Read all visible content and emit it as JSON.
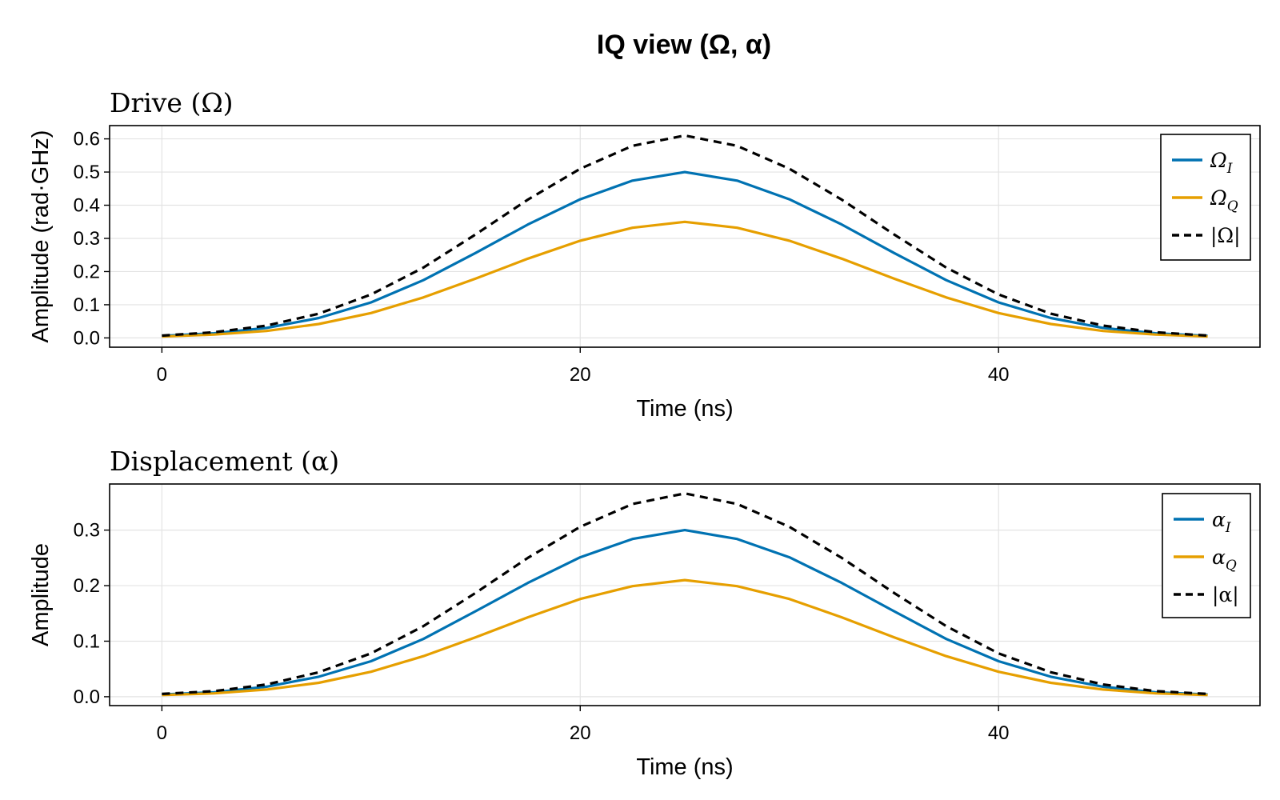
{
  "figure": {
    "title": "IQ view (Ω, α)"
  },
  "colors": {
    "I": "#0072b2",
    "Q": "#e69f00",
    "abs": "#000000",
    "grid": "#e3e3e3",
    "frame": "#000000"
  },
  "chart_data": [
    {
      "type": "line",
      "title": "Drive (Ω)",
      "xlabel": "Time (ns)",
      "ylabel": "Amplitude (rad·GHz)",
      "xlim": [
        -2.5,
        52.5
      ],
      "ylim": [
        -0.028,
        0.64
      ],
      "xticks": [
        0,
        20,
        40
      ],
      "yticks": [
        0.0,
        0.1,
        0.2,
        0.3,
        0.4,
        0.5,
        0.6
      ],
      "ytick_labels": [
        "0.0",
        "0.1",
        "0.2",
        "0.3",
        "0.4",
        "0.5",
        "0.6"
      ],
      "grid": true,
      "legend_position": "top-right",
      "x": [
        0,
        2.5,
        5,
        7.5,
        10,
        12.5,
        15,
        17.5,
        20,
        22.5,
        25,
        27.5,
        30,
        32.5,
        35,
        37.5,
        40,
        42.5,
        45,
        47.5,
        50
      ],
      "series": [
        {
          "name": "Ω_I",
          "label_main": "Ω",
          "label_sub": "I",
          "color_key": "I",
          "dash": false,
          "values": [
            0.006,
            0.014,
            0.03,
            0.06,
            0.107,
            0.174,
            0.256,
            0.342,
            0.418,
            0.474,
            0.5,
            0.474,
            0.418,
            0.342,
            0.256,
            0.174,
            0.107,
            0.06,
            0.03,
            0.014,
            0.006
          ]
        },
        {
          "name": "Ω_Q",
          "label_main": "Ω",
          "label_sub": "Q",
          "color_key": "Q",
          "dash": false,
          "values": [
            0.004,
            0.01,
            0.021,
            0.042,
            0.075,
            0.122,
            0.179,
            0.239,
            0.293,
            0.332,
            0.35,
            0.332,
            0.293,
            0.239,
            0.179,
            0.122,
            0.075,
            0.042,
            0.021,
            0.01,
            0.004
          ]
        },
        {
          "name": "|Ω|",
          "label_main": "|Ω|",
          "label_sub": "",
          "color_key": "abs",
          "dash": true,
          "values": [
            0.007,
            0.017,
            0.037,
            0.073,
            0.131,
            0.212,
            0.312,
            0.417,
            0.51,
            0.579,
            0.61,
            0.579,
            0.51,
            0.417,
            0.312,
            0.212,
            0.131,
            0.073,
            0.037,
            0.017,
            0.007
          ]
        }
      ]
    },
    {
      "type": "line",
      "title": "Displacement (α)",
      "xlabel": "Time (ns)",
      "ylabel": "Amplitude",
      "xlim": [
        -2.5,
        52.5
      ],
      "ylim": [
        -0.016,
        0.383
      ],
      "xticks": [
        0,
        20,
        40
      ],
      "yticks": [
        0.0,
        0.1,
        0.2,
        0.3
      ],
      "ytick_labels": [
        "0.0",
        "0.1",
        "0.2",
        "0.3"
      ],
      "grid": true,
      "legend_position": "top-right",
      "x": [
        0,
        2.5,
        5,
        7.5,
        10,
        12.5,
        15,
        17.5,
        20,
        22.5,
        25,
        27.5,
        30,
        32.5,
        35,
        37.5,
        40,
        42.5,
        45,
        47.5,
        50
      ],
      "series": [
        {
          "name": "α_I",
          "label_main": "α",
          "label_sub": "I",
          "color_key": "I",
          "dash": false,
          "values": [
            0.004,
            0.008,
            0.018,
            0.036,
            0.064,
            0.104,
            0.154,
            0.205,
            0.251,
            0.284,
            0.3,
            0.284,
            0.251,
            0.205,
            0.154,
            0.104,
            0.064,
            0.036,
            0.018,
            0.008,
            0.004
          ]
        },
        {
          "name": "α_Q",
          "label_main": "α",
          "label_sub": "Q",
          "color_key": "Q",
          "dash": false,
          "values": [
            0.003,
            0.006,
            0.013,
            0.025,
            0.045,
            0.073,
            0.107,
            0.143,
            0.176,
            0.199,
            0.21,
            0.199,
            0.176,
            0.143,
            0.107,
            0.073,
            0.045,
            0.025,
            0.013,
            0.006,
            0.003
          ]
        },
        {
          "name": "|α|",
          "label_main": "|α|",
          "label_sub": "",
          "color_key": "abs",
          "dash": true,
          "values": [
            0.005,
            0.01,
            0.022,
            0.044,
            0.078,
            0.127,
            0.187,
            0.25,
            0.306,
            0.347,
            0.366,
            0.347,
            0.306,
            0.25,
            0.187,
            0.127,
            0.078,
            0.044,
            0.022,
            0.01,
            0.005
          ]
        }
      ]
    }
  ]
}
